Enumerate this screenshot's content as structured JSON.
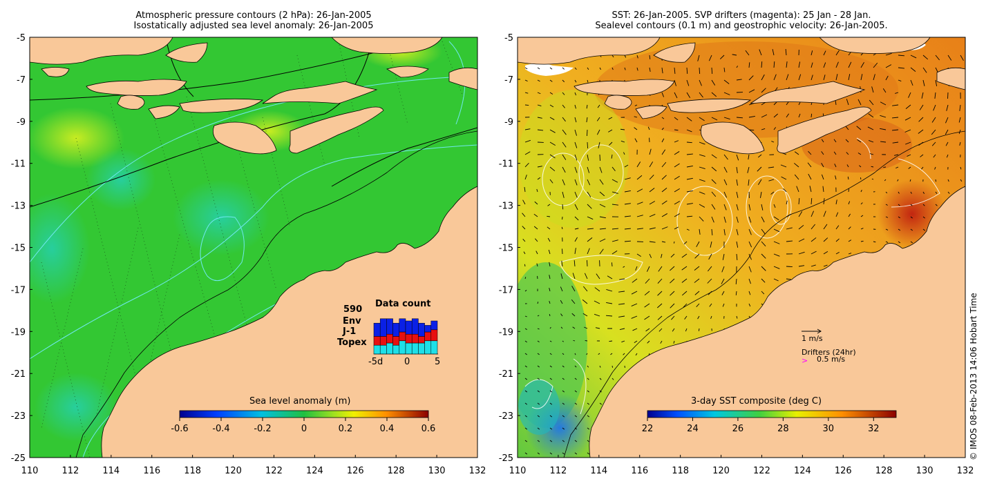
{
  "left": {
    "title_line1": "Atmospheric pressure contours (2 hPa): 26-Jan-2005",
    "title_line2": "Isostatically adjusted sea level anomaly: 26-Jan-2005",
    "colorbar": {
      "title": "Sea level anomaly (m)",
      "min": -0.6,
      "max": 0.6,
      "ticks": [
        "-0.6",
        "-0.4",
        "-0.2",
        "0",
        "0.2",
        "0.4",
        "0.6"
      ]
    },
    "inset": {
      "title": "Data count",
      "count": "590",
      "series": [
        {
          "name": "Env",
          "color": "#0a20e6"
        },
        {
          "name": "J-1",
          "color": "#e81010"
        },
        {
          "name": "Topex",
          "color": "#1ee0e8"
        }
      ],
      "x_ticks": [
        "-5d",
        "0",
        "5"
      ],
      "bars": [
        {
          "topex": 4,
          "j1": 4,
          "env": 6
        },
        {
          "topex": 4,
          "j1": 4,
          "env": 8
        },
        {
          "topex": 5,
          "j1": 4,
          "env": 7
        },
        {
          "topex": 4,
          "j1": 4,
          "env": 6
        },
        {
          "topex": 6,
          "j1": 4,
          "env": 6
        },
        {
          "topex": 5,
          "j1": 4,
          "env": 6
        },
        {
          "topex": 5,
          "j1": 4,
          "env": 7
        },
        {
          "topex": 5,
          "j1": 3,
          "env": 6
        },
        {
          "topex": 6,
          "j1": 4,
          "env": 3
        },
        {
          "topex": 6,
          "j1": 5,
          "env": 4
        }
      ]
    }
  },
  "right": {
    "title_line1": "SST: 26-Jan-2005. SVP drifters (magenta): 25 Jan - 28 Jan.",
    "title_line2": "Sealevel contours (0.1 m) and geostrophic velocity: 26-Jan-2005.",
    "colorbar": {
      "title": "3-day SST composite (deg C)",
      "min": 22,
      "max": 33,
      "ticks": [
        "22",
        "24",
        "26",
        "28",
        "30",
        "32"
      ]
    },
    "velocity_legend": "1 m/s",
    "drifter_legend_title": "Drifters (24hr)",
    "drifter_legend_speed": "0.5 m/s",
    "drifter_color": "#ff00ff"
  },
  "axes": {
    "lat_ticks": [
      "-5",
      "-7",
      "-9",
      "-11",
      "-13",
      "-15",
      "-17",
      "-19",
      "-21",
      "-23",
      "-25"
    ],
    "lon_ticks": [
      "110",
      "112",
      "114",
      "116",
      "118",
      "120",
      "122",
      "124",
      "126",
      "128",
      "130",
      "132"
    ]
  },
  "credit": "© IMOS 08-Feb-2013 14:06 Hobart Time",
  "colors": {
    "land": "#f9c899",
    "sea_anomaly": "#33cc33",
    "sst_warm": "#f0a020"
  }
}
